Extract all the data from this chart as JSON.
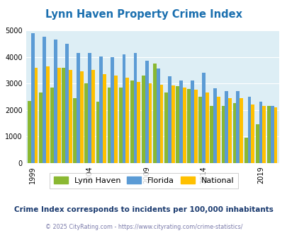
{
  "title": "Lynn Haven Property Crime Index",
  "years": [
    1999,
    2000,
    2001,
    2002,
    2003,
    2004,
    2005,
    2006,
    2007,
    2008,
    2009,
    2010,
    2011,
    2012,
    2013,
    2014,
    2015,
    2016,
    2017,
    2018,
    2019,
    2020
  ],
  "lynn_haven": [
    2350,
    2650,
    2850,
    3600,
    2450,
    3000,
    2300,
    2850,
    2850,
    3100,
    3300,
    3750,
    2650,
    2900,
    2800,
    2500,
    2150,
    2150,
    2250,
    960,
    1450,
    2150
  ],
  "florida": [
    4900,
    4750,
    4650,
    4500,
    4150,
    4150,
    4020,
    4000,
    4100,
    4150,
    3850,
    3550,
    3280,
    3100,
    3100,
    3400,
    2820,
    2700,
    2700,
    2500,
    2300,
    2150
  ],
  "national": [
    3600,
    3650,
    3600,
    3500,
    3450,
    3500,
    3350,
    3300,
    3220,
    3050,
    3000,
    2950,
    2920,
    2850,
    2770,
    2650,
    2500,
    2450,
    2450,
    2200,
    2150,
    2100
  ],
  "lynn_haven_color": "#8ab832",
  "florida_color": "#5b9bd5",
  "national_color": "#ffc000",
  "bg_color": "#ddeef5",
  "ylim": [
    0,
    5000
  ],
  "yticks": [
    0,
    1000,
    2000,
    3000,
    4000,
    5000
  ],
  "xtick_years": [
    1999,
    2004,
    2009,
    2014,
    2019
  ],
  "subtitle": "Crime Index corresponds to incidents per 100,000 inhabitants",
  "footer": "© 2025 CityRating.com - https://www.cityrating.com/crime-statistics/",
  "title_color": "#1a6faf",
  "subtitle_color": "#1a3a6f",
  "footer_color": "#7a7aaa"
}
